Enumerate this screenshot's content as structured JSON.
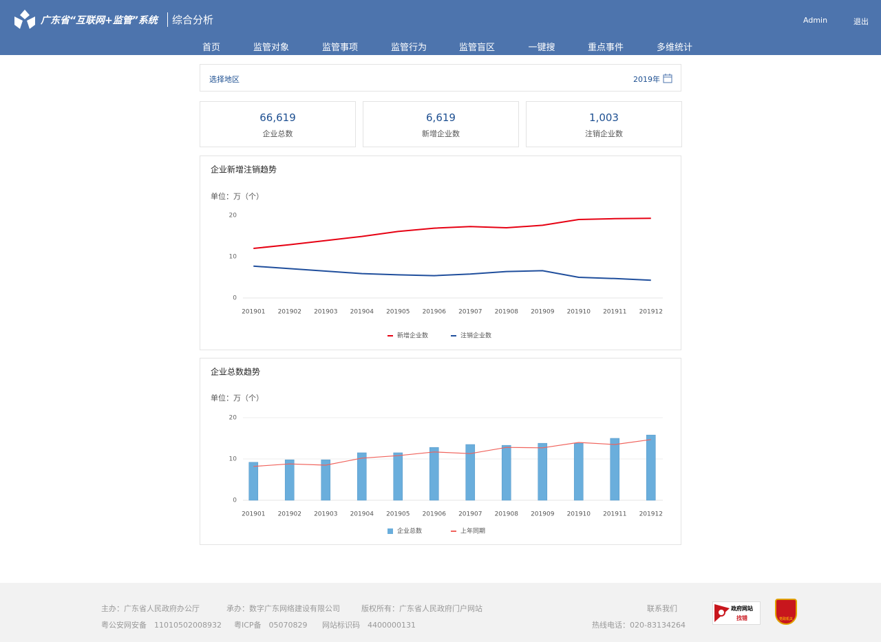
{
  "header": {
    "title": "广东省“互联网+监管”系统",
    "subtitle": "综合分析",
    "user": "Admin",
    "logout": "退出"
  },
  "nav": [
    "首页",
    "监管对象",
    "监管事项",
    "监管行为",
    "监管盲区",
    "一键搜",
    "重点事件",
    "多维统计"
  ],
  "filter": {
    "region": "选择地区",
    "year": "2019年"
  },
  "stats": [
    {
      "value": "66,619",
      "label": "企业总数"
    },
    {
      "value": "6,619",
      "label": "新增企业数"
    },
    {
      "value": "1,003",
      "label": "注销企业数"
    }
  ],
  "chart_data": [
    {
      "type": "line",
      "title": "企业新增注销趋势",
      "unit": "单位：万（个）",
      "categories": [
        "201901",
        "201902",
        "201903",
        "201904",
        "201905",
        "201906",
        "201907",
        "201908",
        "201909",
        "201910",
        "201911",
        "201912"
      ],
      "series": [
        {
          "name": "新增企业数",
          "color": "#e60012",
          "type": "line",
          "values": [
            12,
            12.9,
            13.9,
            14.9,
            16.1,
            16.9,
            17.3,
            17.0,
            17.6,
            19.0,
            19.2,
            19.3
          ]
        },
        {
          "name": "注销企业数",
          "color": "#1f4e9c",
          "type": "line",
          "values": [
            7.7,
            7.1,
            6.5,
            5.9,
            5.6,
            5.4,
            5.8,
            6.4,
            6.6,
            5.0,
            4.7,
            4.3
          ]
        }
      ],
      "ylim": [
        0,
        20
      ],
      "yticks": [
        0,
        10,
        20
      ],
      "grid": false
    },
    {
      "type": "bar",
      "title": "企业总数趋势",
      "unit": "单位：万（个）",
      "categories": [
        "201901",
        "201902",
        "201903",
        "201904",
        "201905",
        "201906",
        "201907",
        "201908",
        "201909",
        "201910",
        "201911",
        "201912"
      ],
      "series": [
        {
          "name": "企业总数",
          "color": "#6aaedc",
          "type": "bar",
          "values": [
            9.2,
            9.8,
            9.8,
            11.5,
            11.5,
            12.8,
            13.5,
            13.3,
            13.8,
            13.8,
            15.0,
            15.8
          ]
        },
        {
          "name": "上年同期",
          "color": "#f0625b",
          "type": "line",
          "values": [
            8.2,
            8.8,
            8.5,
            10.2,
            10.8,
            11.7,
            11.3,
            12.8,
            12.7,
            14.0,
            13.5,
            14.7
          ]
        }
      ],
      "ylim": [
        0,
        20
      ],
      "yticks": [
        0,
        10,
        20
      ],
      "grid": true
    }
  ],
  "footer": {
    "row1": [
      "主办：广东省人民政府办公厅",
      "承办：数字广东网络建设有限公司",
      "版权所有：广东省人民政府门户网站"
    ],
    "row2": [
      "粤公安网安备　11010502008932",
      "粤ICP备　05070829",
      "网站标识码　4400000131"
    ],
    "contact": "联系我们",
    "hotline": "热线电话：020-83134264",
    "badge": [
      "政府网站",
      "找错"
    ],
    "shield": "党政机关"
  }
}
